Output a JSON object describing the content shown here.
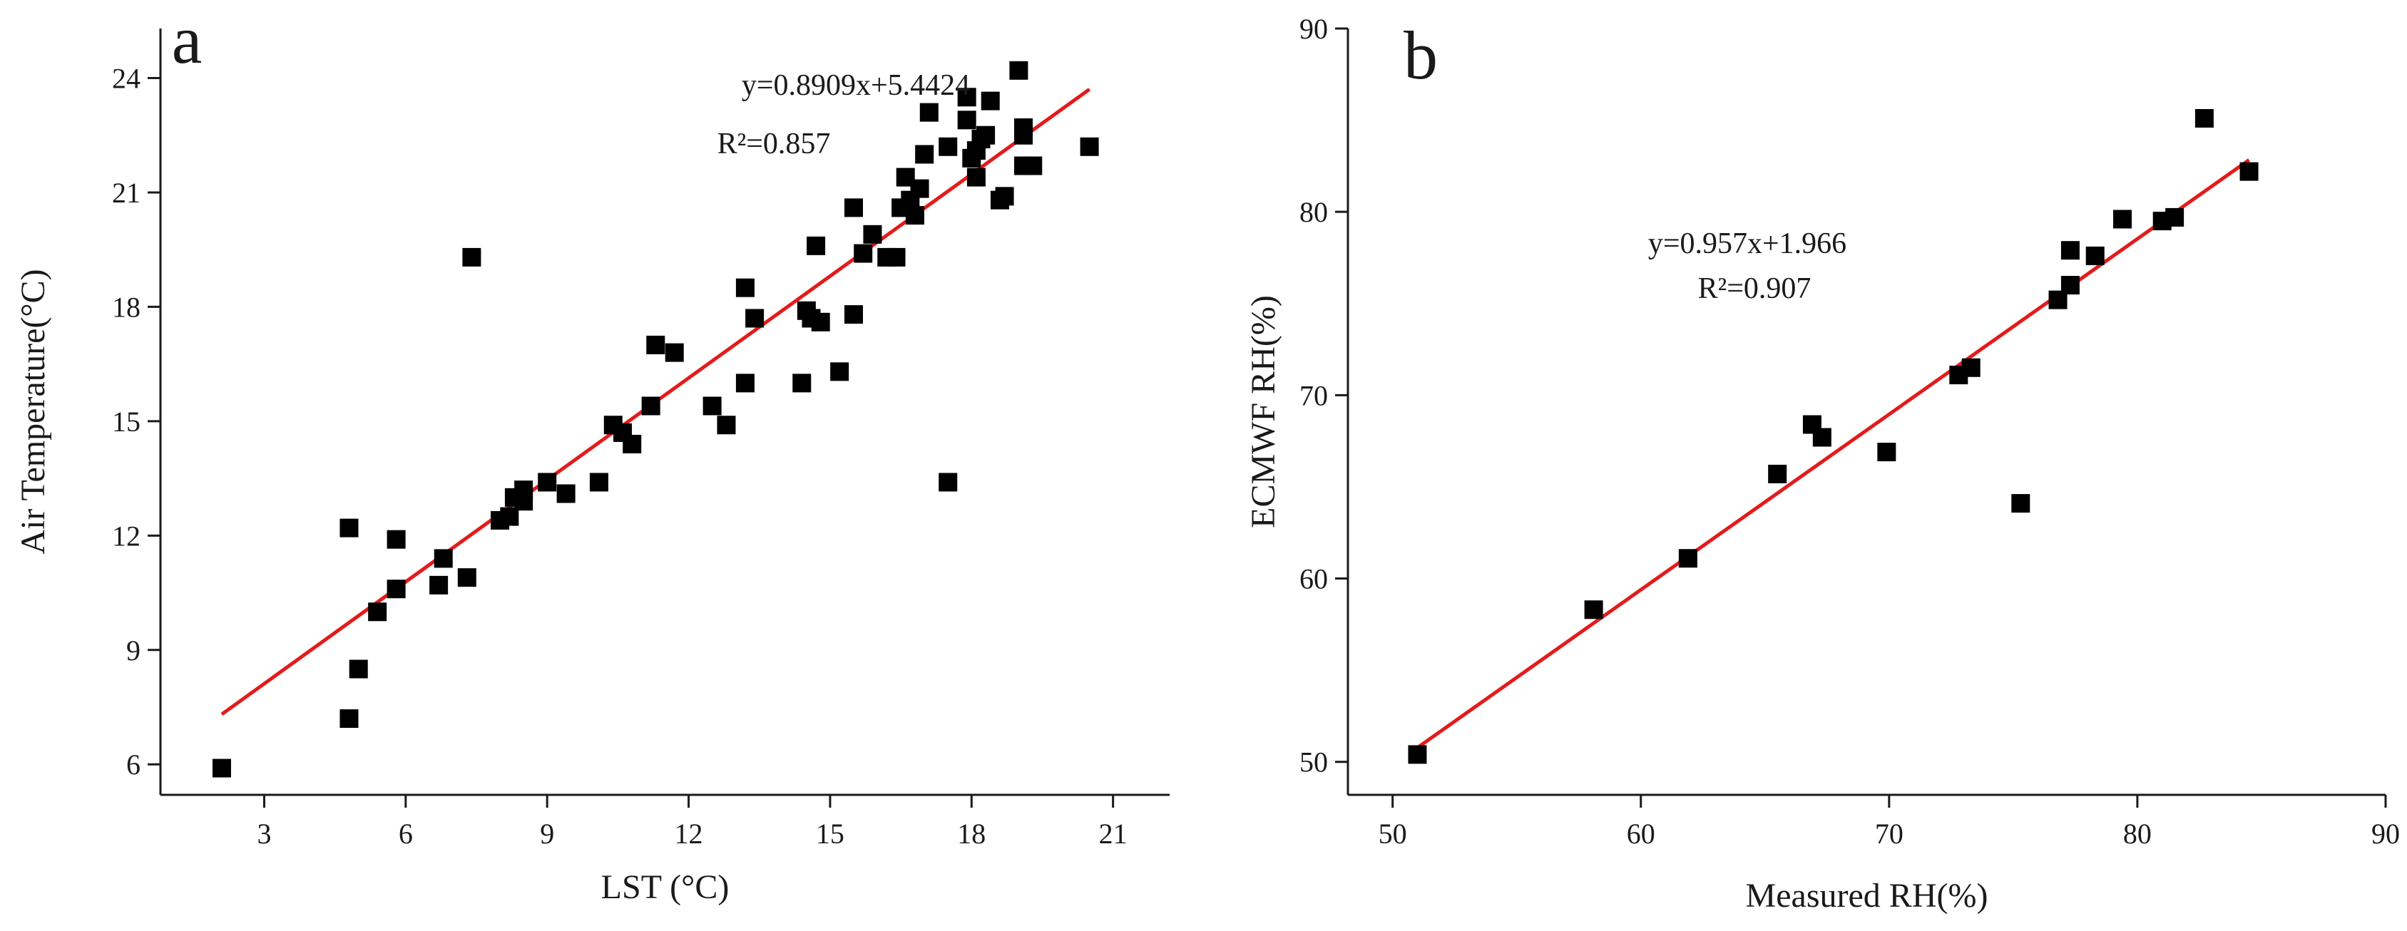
{
  "colors": {
    "points": "#000000",
    "fit_line": "#e31b1b",
    "axes": "#1a1a1a"
  },
  "chart_data": [
    {
      "type": "scatter",
      "panel": "a",
      "title": "",
      "xlabel": "LST (°C)",
      "ylabel": "Air Temperature(°C)",
      "xlim": [
        0.8,
        22.2
      ],
      "ylim": [
        5.2,
        25.3
      ],
      "xticks": [
        3,
        6,
        9,
        12,
        15,
        18,
        21
      ],
      "yticks": [
        6,
        9,
        12,
        15,
        18,
        21,
        24
      ],
      "equation": "y=0.8909x+5.4424",
      "r2": "R²=0.857",
      "fit": {
        "slope": 0.8909,
        "intercept": 5.4424,
        "x_range": [
          2.1,
          20.5
        ]
      },
      "points": [
        [
          2.1,
          5.9
        ],
        [
          4.8,
          7.2
        ],
        [
          5.0,
          8.5
        ],
        [
          4.8,
          12.2
        ],
        [
          5.4,
          10.0
        ],
        [
          5.8,
          10.6
        ],
        [
          5.8,
          11.9
        ],
        [
          6.7,
          10.7
        ],
        [
          6.8,
          11.4
        ],
        [
          7.3,
          10.9
        ],
        [
          7.4,
          19.3
        ],
        [
          8.0,
          12.4
        ],
        [
          8.2,
          12.5
        ],
        [
          8.3,
          13.0
        ],
        [
          8.5,
          12.9
        ],
        [
          8.5,
          13.2
        ],
        [
          9.0,
          13.4
        ],
        [
          9.4,
          13.1
        ],
        [
          10.1,
          13.4
        ],
        [
          10.4,
          14.9
        ],
        [
          10.6,
          14.7
        ],
        [
          10.8,
          14.4
        ],
        [
          11.2,
          15.4
        ],
        [
          11.3,
          17.0
        ],
        [
          11.7,
          16.8
        ],
        [
          12.5,
          15.4
        ],
        [
          12.8,
          14.9
        ],
        [
          13.2,
          16.0
        ],
        [
          13.2,
          18.5
        ],
        [
          13.4,
          17.7
        ],
        [
          14.4,
          16.0
        ],
        [
          14.5,
          17.9
        ],
        [
          14.6,
          17.7
        ],
        [
          14.7,
          19.6
        ],
        [
          14.8,
          17.6
        ],
        [
          15.2,
          16.3
        ],
        [
          15.5,
          17.8
        ],
        [
          15.5,
          20.6
        ],
        [
          15.7,
          19.4
        ],
        [
          15.9,
          19.9
        ],
        [
          16.2,
          19.3
        ],
        [
          16.4,
          19.3
        ],
        [
          16.5,
          20.6
        ],
        [
          16.6,
          21.4
        ],
        [
          16.7,
          20.8
        ],
        [
          16.8,
          20.4
        ],
        [
          16.9,
          21.1
        ],
        [
          17.0,
          22.0
        ],
        [
          17.1,
          23.1
        ],
        [
          17.5,
          22.2
        ],
        [
          17.5,
          13.4
        ],
        [
          17.9,
          22.9
        ],
        [
          17.9,
          23.5
        ],
        [
          18.0,
          21.9
        ],
        [
          18.1,
          22.1
        ],
        [
          18.1,
          21.4
        ],
        [
          18.2,
          22.4
        ],
        [
          18.3,
          22.5
        ],
        [
          18.4,
          23.4
        ],
        [
          18.6,
          20.8
        ],
        [
          18.7,
          20.9
        ],
        [
          19.0,
          24.2
        ],
        [
          19.1,
          22.7
        ],
        [
          19.1,
          21.7
        ],
        [
          19.1,
          22.5
        ],
        [
          19.3,
          21.7
        ],
        [
          20.5,
          22.2
        ]
      ]
    },
    {
      "type": "scatter",
      "panel": "b",
      "title": "",
      "xlabel": "Measured RH(%)",
      "ylabel": "ECMWF RH(%)",
      "xlim": [
        48.2,
        90
      ],
      "ylim": [
        48.2,
        90
      ],
      "xticks": [
        50,
        60,
        70,
        80,
        90
      ],
      "yticks": [
        50,
        60,
        70,
        80,
        90
      ],
      "equation": "y=0.957x+1.966",
      "r2": "R²=0.907",
      "fit": {
        "slope": 0.957,
        "intercept": 1.966,
        "x_range": [
          51.0,
          84.5
        ]
      },
      "points": [
        [
          51.0,
          50.4
        ],
        [
          58.1,
          58.3
        ],
        [
          61.9,
          61.1
        ],
        [
          65.5,
          65.7
        ],
        [
          66.9,
          68.4
        ],
        [
          67.3,
          67.7
        ],
        [
          69.9,
          66.9
        ],
        [
          72.8,
          71.1
        ],
        [
          73.3,
          71.5
        ],
        [
          75.3,
          64.1
        ],
        [
          76.8,
          75.2
        ],
        [
          77.3,
          77.9
        ],
        [
          77.3,
          76.0
        ],
        [
          78.3,
          77.6
        ],
        [
          79.4,
          79.6
        ],
        [
          81.0,
          79.5
        ],
        [
          81.5,
          79.7
        ],
        [
          82.7,
          85.1
        ],
        [
          84.5,
          82.2
        ]
      ]
    }
  ]
}
